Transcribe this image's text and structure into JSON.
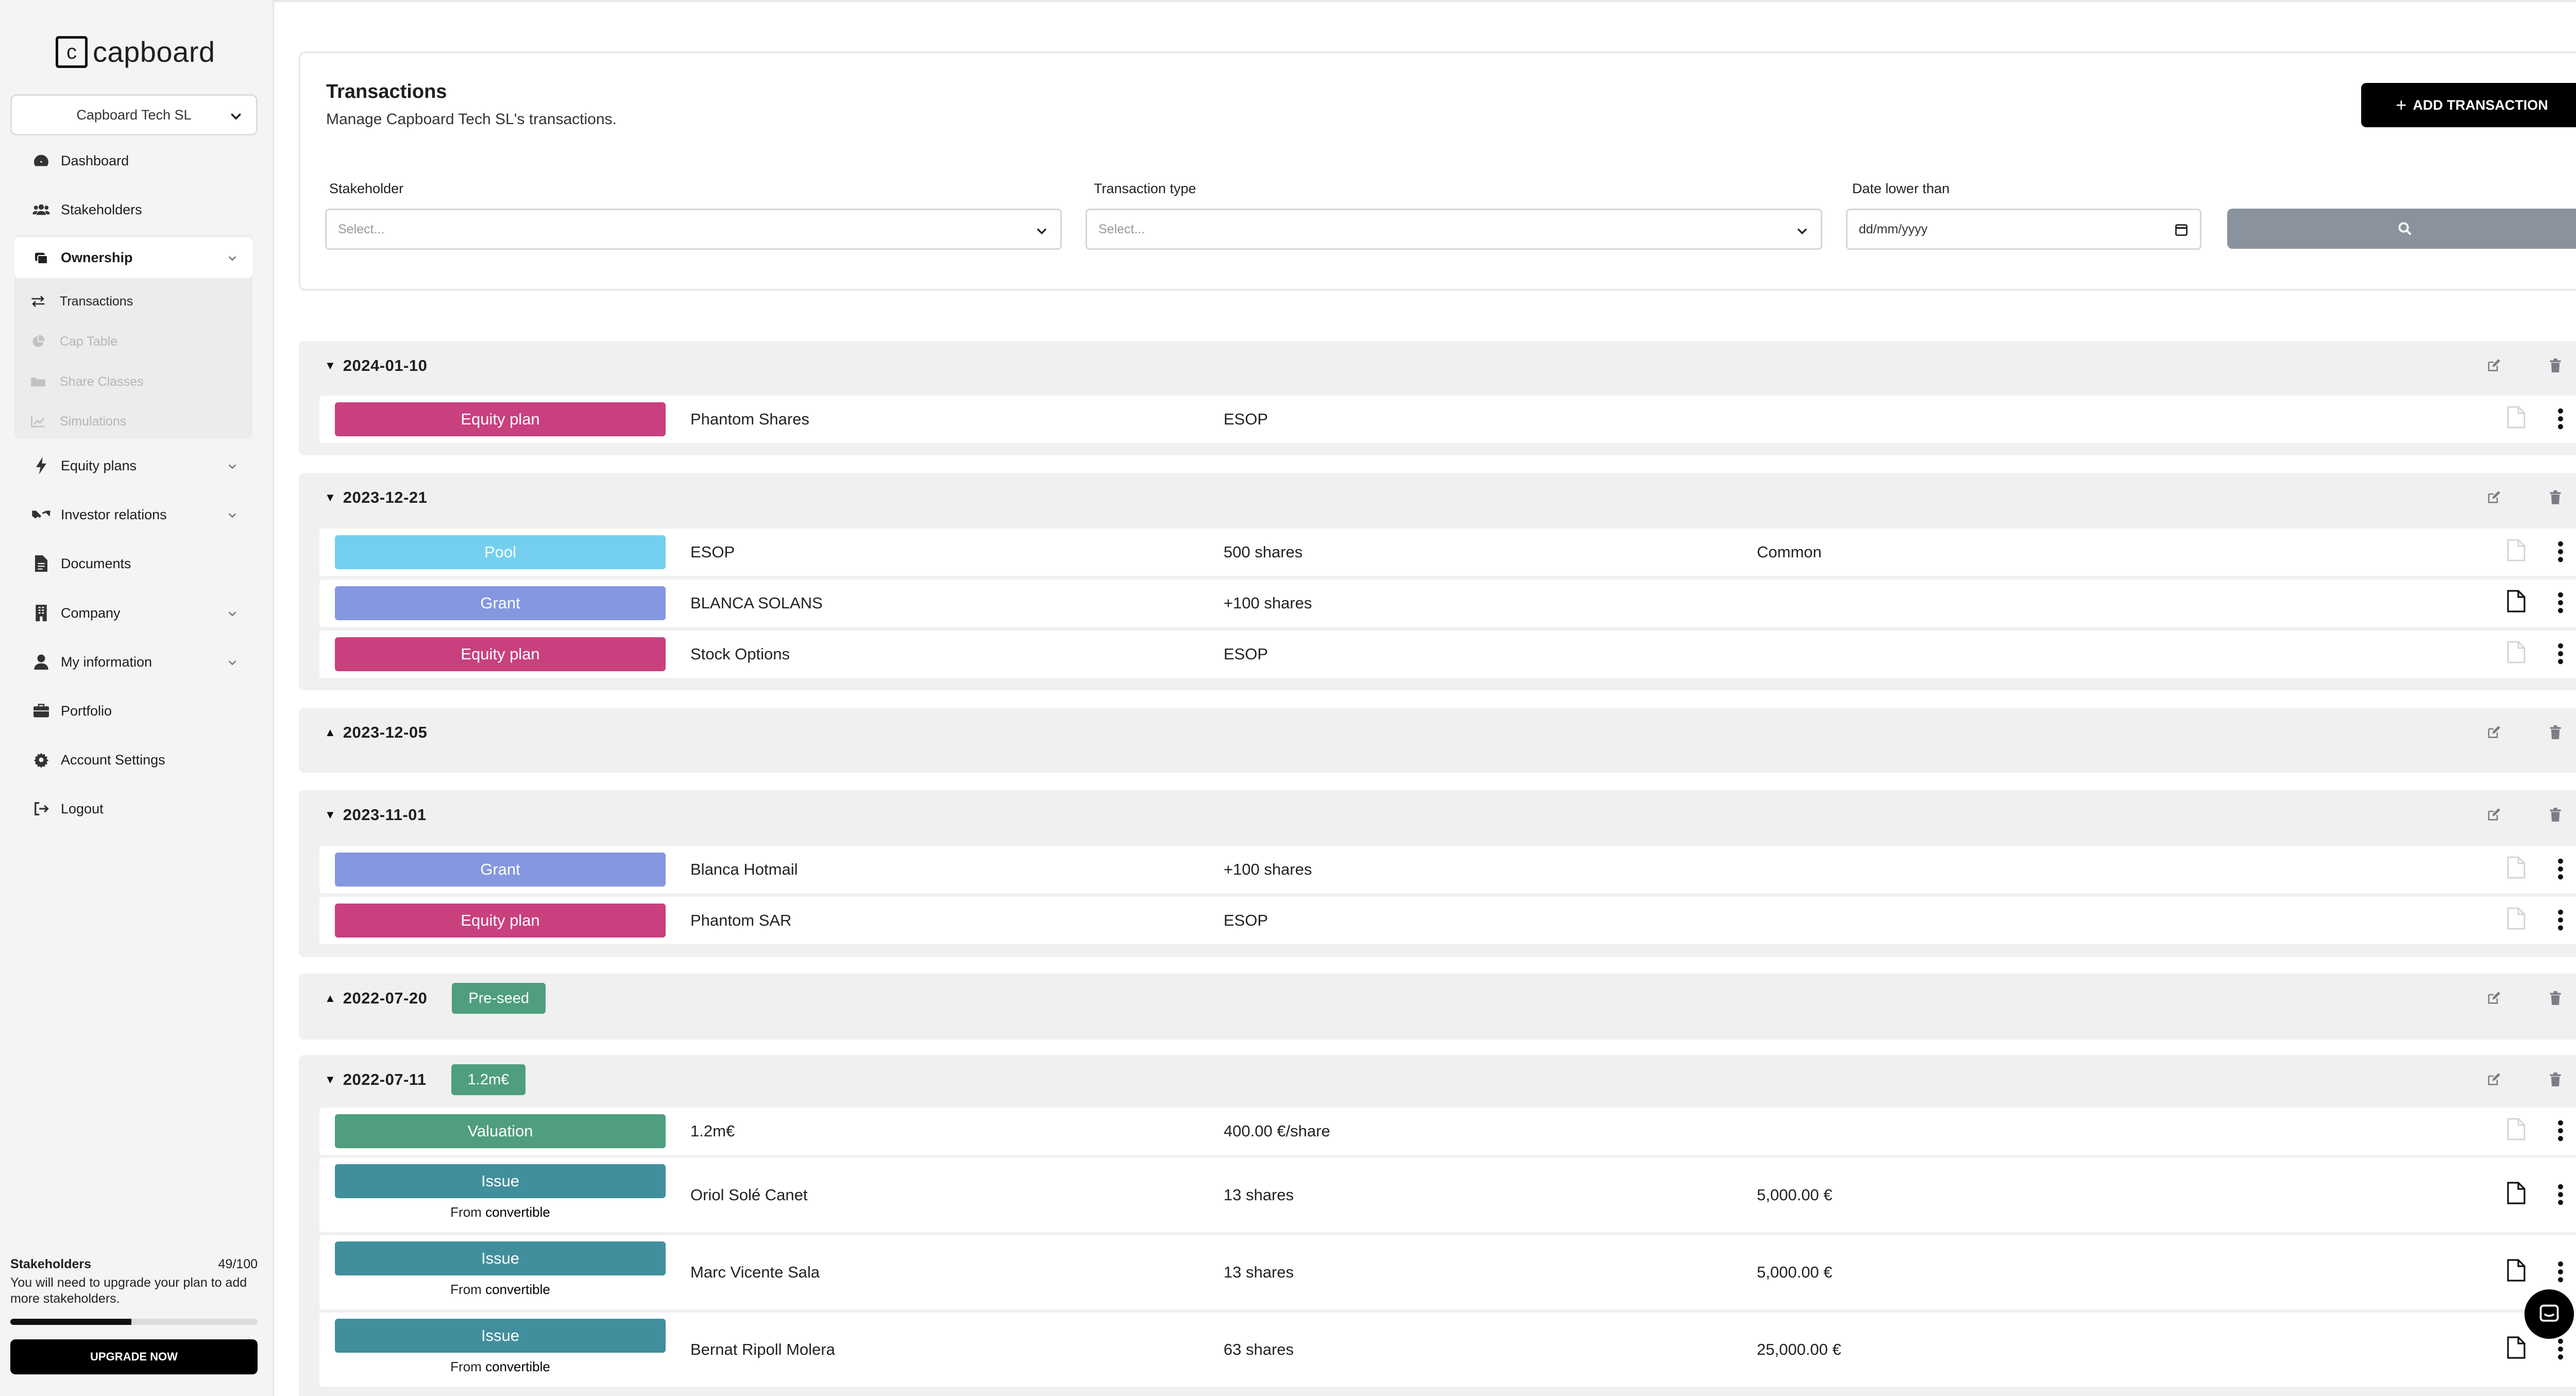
{
  "app": {
    "logo_letter": "c",
    "logo_text": "capboard"
  },
  "sidebar": {
    "company": "Capboard Tech SL",
    "items": [
      {
        "label": "Dashboard",
        "icon": "gauge-icon"
      },
      {
        "label": "Stakeholders",
        "icon": "users-icon"
      },
      {
        "label": "Ownership",
        "icon": "layers-icon"
      },
      {
        "label": "Equity plans",
        "icon": "bolt-icon"
      },
      {
        "label": "Investor relations",
        "icon": "handshake-icon"
      },
      {
        "label": "Documents",
        "icon": "file-icon"
      },
      {
        "label": "Company",
        "icon": "building-icon"
      },
      {
        "label": "My information",
        "icon": "user-icon"
      },
      {
        "label": "Portfolio",
        "icon": "briefcase-icon"
      },
      {
        "label": "Account Settings",
        "icon": "gear-icon"
      },
      {
        "label": "Logout",
        "icon": "logout-icon"
      }
    ],
    "ownership_sub": [
      {
        "label": "Transactions",
        "icon": "arrows-icon"
      },
      {
        "label": "Cap Table",
        "icon": "pie-icon"
      },
      {
        "label": "Share Classes",
        "icon": "folder-icon"
      },
      {
        "label": "Simulations",
        "icon": "chart-icon"
      }
    ],
    "footer": {
      "title": "Stakeholders",
      "count": "49/100",
      "note": "You will need to upgrade your plan to add more stakeholders.",
      "progress": 0.49,
      "upgrade_label": "UPGRADE NOW"
    }
  },
  "header": {
    "title": "Transactions",
    "subtitle": "Manage Capboard Tech SL's transactions.",
    "add_label": "ADD TRANSACTION"
  },
  "filters": {
    "stakeholder_label": "Stakeholder",
    "stakeholder_placeholder": "Select...",
    "type_label": "Transaction type",
    "type_placeholder": "Select...",
    "date_label": "Date lower than",
    "date_placeholder": "dd/mm/yyyy"
  },
  "groups": [
    {
      "date": "2024-01-10",
      "badge": "",
      "rows": [
        {
          "tag": "Equity plan",
          "c1": "Phantom Shares",
          "c2": "ESOP",
          "c3": ""
        }
      ]
    },
    {
      "date": "2023-12-21",
      "badge": "",
      "rows": [
        {
          "tag": "Pool",
          "c1": "ESOP",
          "c2": "500 shares",
          "c3": "Common"
        },
        {
          "tag": "Grant",
          "c1": "BLANCA SOLANS",
          "c2": "+100 shares",
          "c3": ""
        },
        {
          "tag": "Equity plan",
          "c1": "Stock Options",
          "c2": "ESOP",
          "c3": ""
        }
      ]
    },
    {
      "date": "2023-12-05",
      "badge": "",
      "rows": []
    },
    {
      "date": "2023-11-01",
      "badge": "",
      "rows": [
        {
          "tag": "Grant",
          "c1": "Blanca Hotmail",
          "c2": "+100 shares",
          "c3": ""
        },
        {
          "tag": "Equity plan",
          "c1": "Phantom SAR",
          "c2": "ESOP",
          "c3": ""
        }
      ]
    },
    {
      "date": "2022-07-20",
      "badge": "Pre-seed",
      "rows": []
    },
    {
      "date": "2022-07-11",
      "badge": "1.2m€",
      "rows": [
        {
          "tag": "Valuation",
          "c1": "1.2m€",
          "c2": "400.00 €/share",
          "c3": ""
        },
        {
          "tag": "Issue",
          "sub_prefix": "From",
          "sub_value": "convertible",
          "c1": "Oriol Solé Canet",
          "c2": "13 shares",
          "c3": "5,000.00 €"
        },
        {
          "tag": "Issue",
          "sub_prefix": "From",
          "sub_value": "convertible",
          "c1": "Marc Vicente Sala",
          "c2": "13 shares",
          "c3": "5,000.00 €"
        },
        {
          "tag": "Issue",
          "sub_prefix": "From",
          "sub_value": "convertible",
          "c1": "Bernat Ripoll Molera",
          "c2": "63 shares",
          "c3": "25,000.00 €"
        }
      ]
    }
  ],
  "colors": {
    "equity_plan": "#c9407e",
    "pool": "#74cfee",
    "grant": "#8497e0",
    "valuation": "#4f9e7f",
    "issue": "#418f9d"
  }
}
